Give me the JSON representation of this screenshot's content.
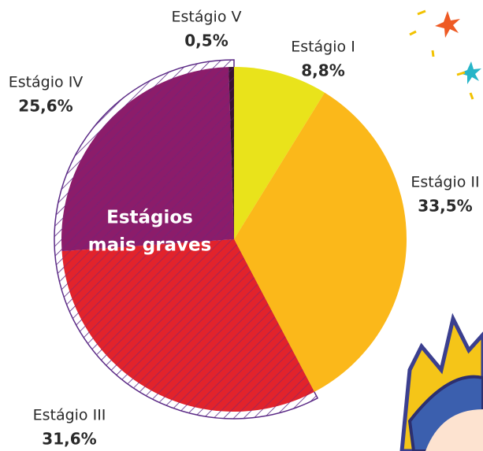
{
  "chart_data": {
    "type": "pie",
    "categories": [
      "Estágio I",
      "Estágio II",
      "Estágio III",
      "Estágio IV",
      "Estágio V"
    ],
    "values": [
      8.8,
      33.5,
      31.6,
      25.6,
      0.5
    ],
    "value_labels": [
      "8,8%",
      "33,5%",
      "31,6%",
      "25,6%",
      "0,5%"
    ],
    "colors": [
      "#e9e31b",
      "#fbb81a",
      "#e2232b",
      "#8c1c6a",
      "#3a1232"
    ],
    "annotation": [
      "Estágios",
      "mais graves"
    ]
  }
}
